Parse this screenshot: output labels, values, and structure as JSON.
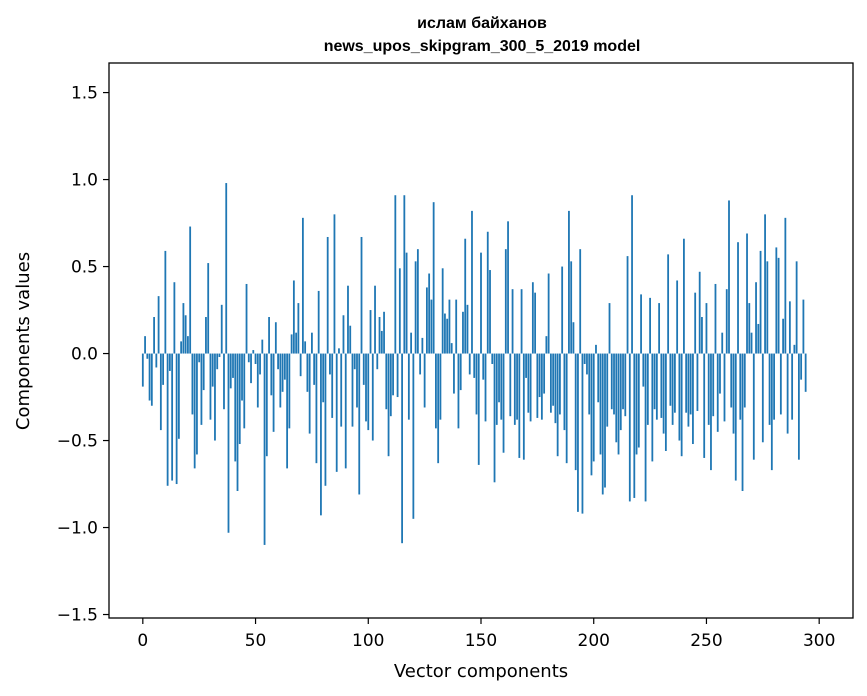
{
  "chart_data": {
    "type": "bar",
    "title": "ислам байханов",
    "subtitle": "news_upos_skipgram_300_5_2019 model",
    "xlabel": "Vector components",
    "ylabel": "Components values",
    "xlim": [
      -15,
      315
    ],
    "ylim": [
      -1.52,
      1.67
    ],
    "x_ticks": [
      0,
      50,
      100,
      150,
      200,
      250,
      300
    ],
    "y_ticks": [
      -1.5,
      -1.0,
      -0.5,
      0.0,
      0.5,
      1.0,
      1.5
    ],
    "grid": false,
    "legend": "none",
    "bar_color": "#1f77b4",
    "values": [
      -0.19,
      0.1,
      -0.03,
      -0.27,
      -0.3,
      0.21,
      -0.08,
      0.33,
      -0.44,
      -0.18,
      0.59,
      -0.76,
      -0.1,
      -0.73,
      0.41,
      -0.75,
      -0.49,
      0.07,
      0.29,
      0.22,
      0.1,
      0.73,
      -0.35,
      -0.66,
      -0.58,
      -0.05,
      -0.41,
      -0.21,
      0.21,
      0.52,
      -0.38,
      -0.19,
      -0.5,
      -0.09,
      -0.02,
      0.28,
      -0.32,
      0.98,
      -1.03,
      -0.2,
      -0.14,
      -0.62,
      -0.79,
      -0.52,
      -0.27,
      -0.43,
      0.4,
      -0.05,
      -0.17,
      0.02,
      -0.06,
      -0.31,
      -0.12,
      0.08,
      -1.1,
      -0.59,
      0.21,
      -0.24,
      -0.45,
      0.18,
      -0.09,
      -0.31,
      -0.22,
      -0.15,
      -0.66,
      -0.43,
      0.11,
      0.42,
      0.12,
      0.29,
      -0.13,
      0.78,
      0.07,
      -0.22,
      -0.46,
      0.12,
      -0.18,
      -0.63,
      0.36,
      -0.93,
      -0.28,
      -0.76,
      0.67,
      -0.12,
      -0.37,
      0.8,
      -0.68,
      0.03,
      -0.42,
      0.22,
      -0.66,
      0.39,
      0.16,
      -0.42,
      -0.09,
      -0.31,
      -0.81,
      0.67,
      -0.18,
      -0.39,
      -0.44,
      0.25,
      -0.5,
      0.39,
      -0.09,
      0.21,
      0.13,
      0.24,
      -0.32,
      -0.59,
      -0.36,
      -0.24,
      0.91,
      -0.25,
      0.49,
      -1.09,
      0.91,
      0.58,
      -0.38,
      0.12,
      -0.95,
      0.53,
      0.6,
      -0.12,
      0.09,
      -0.31,
      0.38,
      0.46,
      0.31,
      0.87,
      -0.43,
      -0.63,
      -0.38,
      0.49,
      0.23,
      0.2,
      0.31,
      0.06,
      -0.23,
      0.31,
      -0.43,
      -0.21,
      0.24,
      0.66,
      0.28,
      -0.12,
      0.82,
      -0.14,
      -0.35,
      -0.64,
      0.58,
      -0.15,
      -0.39,
      0.7,
      0.48,
      -0.06,
      -0.74,
      -0.41,
      -0.28,
      -0.38,
      -0.57,
      0.6,
      0.76,
      -0.36,
      0.37,
      -0.41,
      -0.38,
      -0.6,
      0.37,
      -0.61,
      -0.14,
      -0.34,
      -0.39,
      0.41,
      0.35,
      -0.37,
      -0.25,
      -0.38,
      -0.23,
      0.1,
      0.46,
      -0.34,
      -0.3,
      -0.4,
      -0.59,
      -0.35,
      0.5,
      -0.44,
      -0.63,
      0.82,
      0.53,
      0.18,
      -0.67,
      -0.91,
      0.6,
      -0.92,
      -0.06,
      -0.12,
      -0.35,
      -0.7,
      -0.62,
      0.05,
      -0.28,
      -0.58,
      -0.81,
      -0.77,
      -0.42,
      0.29,
      -0.32,
      -0.35,
      -0.51,
      -0.58,
      -0.44,
      -0.32,
      -0.36,
      0.56,
      -0.85,
      0.91,
      -0.83,
      -0.58,
      -0.54,
      0.34,
      -0.19,
      -0.85,
      -0.41,
      0.32,
      -0.62,
      -0.32,
      -0.38,
      0.29,
      -0.37,
      -0.46,
      -0.56,
      0.57,
      -0.3,
      -0.41,
      -0.34,
      0.42,
      -0.5,
      -0.59,
      0.66,
      -0.34,
      -0.42,
      -0.35,
      -0.52,
      0.35,
      -0.33,
      0.47,
      0.21,
      -0.6,
      0.29,
      -0.41,
      -0.67,
      -0.36,
      0.4,
      -0.45,
      -0.23,
      0.12,
      -0.39,
      0.37,
      0.88,
      -0.31,
      -0.46,
      -0.73,
      0.64,
      -0.38,
      -0.79,
      -0.31,
      0.69,
      0.29,
      0.12,
      -0.61,
      0.41,
      0.17,
      0.59,
      -0.51,
      0.8,
      0.53,
      -0.41,
      -0.67,
      -0.38,
      0.61,
      0.55,
      -0.35,
      0.2,
      0.78,
      -0.46,
      0.3,
      -0.38,
      0.05,
      0.53,
      -0.61,
      -0.15,
      0.31,
      -0.22
    ]
  }
}
